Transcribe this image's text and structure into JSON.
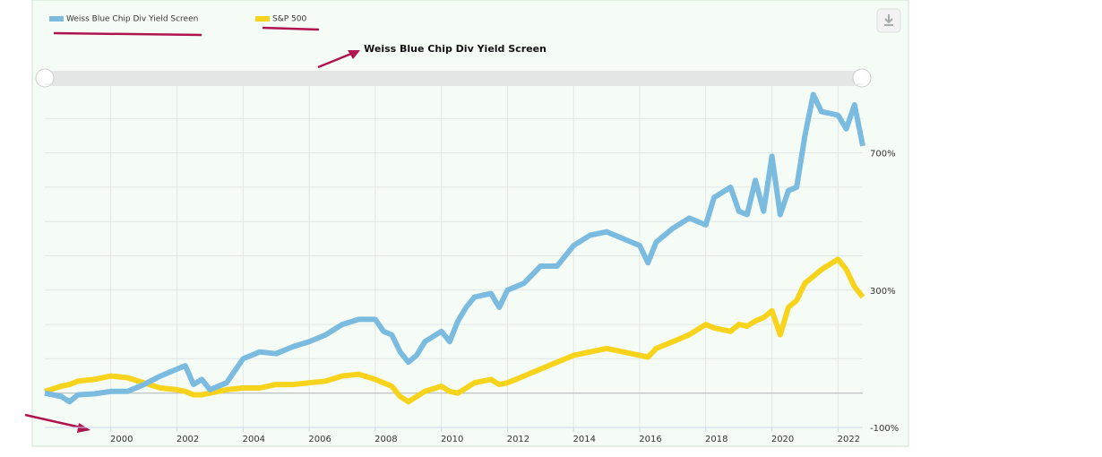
{
  "chart_data": {
    "type": "line",
    "title": "Weiss Blue Chip Div Yield Screen",
    "x": [
      1998,
      1998.5,
      1998.75,
      1999,
      1999.5,
      2000,
      2000.5,
      2001,
      2001.5,
      2002,
      2002.25,
      2002.5,
      2002.75,
      2003,
      2003.5,
      2004,
      2004.5,
      2005,
      2005.5,
      2006,
      2006.5,
      2007,
      2007.5,
      2008,
      2008.25,
      2008.5,
      2008.75,
      2009,
      2009.25,
      2009.5,
      2010,
      2010.25,
      2010.5,
      2010.75,
      2011,
      2011.5,
      2011.75,
      2012,
      2012.5,
      2013,
      2013.5,
      2014,
      2014.5,
      2015,
      2015.5,
      2016,
      2016.25,
      2016.5,
      2017,
      2017.5,
      2018,
      2018.25,
      2018.75,
      2019,
      2019.25,
      2019.5,
      2019.75,
      2020,
      2020.25,
      2020.5,
      2020.75,
      2021,
      2021.25,
      2021.5,
      2022,
      2022.25,
      2022.5,
      2022.75
    ],
    "series": [
      {
        "name": "Weiss Blue Chip Div Yield Screen",
        "color": "#7cbbe0",
        "values": [
          0,
          -10,
          -25,
          -5,
          -2,
          5,
          5,
          25,
          50,
          70,
          80,
          25,
          40,
          10,
          30,
          100,
          120,
          115,
          135,
          150,
          170,
          200,
          215,
          215,
          180,
          170,
          120,
          90,
          110,
          150,
          180,
          150,
          210,
          250,
          280,
          290,
          250,
          300,
          320,
          370,
          370,
          430,
          460,
          470,
          450,
          430,
          380,
          440,
          480,
          510,
          490,
          570,
          600,
          530,
          520,
          620,
          530,
          690,
          520,
          590,
          600,
          750,
          870,
          820,
          810,
          770,
          840,
          720
        ]
      },
      {
        "name": "S&P 500",
        "color": "#f7d31c",
        "values": [
          5,
          20,
          25,
          35,
          40,
          50,
          45,
          30,
          15,
          10,
          5,
          -5,
          -5,
          0,
          10,
          15,
          15,
          25,
          25,
          30,
          35,
          50,
          55,
          40,
          30,
          20,
          -10,
          -25,
          -10,
          5,
          20,
          5,
          0,
          15,
          30,
          40,
          25,
          30,
          50,
          70,
          90,
          110,
          120,
          130,
          120,
          110,
          105,
          130,
          150,
          170,
          200,
          190,
          180,
          200,
          195,
          210,
          220,
          240,
          170,
          250,
          270,
          320,
          340,
          360,
          390,
          360,
          310,
          280
        ]
      }
    ],
    "xlim": [
      1998,
      2022.75
    ],
    "xticks": [
      2000,
      2002,
      2004,
      2006,
      2008,
      2010,
      2012,
      2014,
      2016,
      2018,
      2020,
      2022
    ],
    "ylim": [
      -100,
      900
    ],
    "yticks": [
      {
        "value": -100,
        "label": "-100%"
      },
      {
        "value": 300,
        "label": "300%"
      },
      {
        "value": 700,
        "label": "700%"
      }
    ],
    "ygrid": [
      -100,
      0,
      100,
      200,
      300,
      400,
      500,
      600,
      700,
      800,
      900
    ],
    "baseline": 0,
    "grid": true
  }
}
